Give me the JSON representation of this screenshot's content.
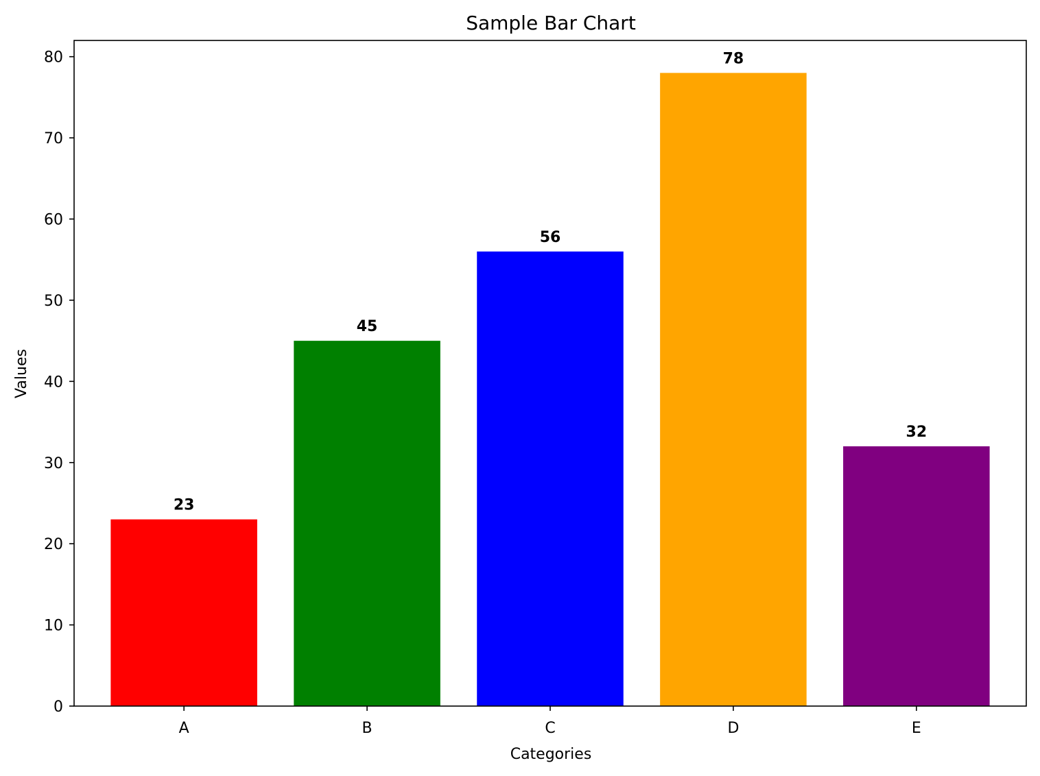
{
  "chart_data": {
    "type": "bar",
    "title": "Sample Bar Chart",
    "xlabel": "Categories",
    "ylabel": "Values",
    "categories": [
      "A",
      "B",
      "C",
      "D",
      "E"
    ],
    "values": [
      23,
      45,
      56,
      78,
      32
    ],
    "data_labels": [
      "23",
      "45",
      "56",
      "78",
      "32"
    ],
    "colors": [
      "#ff0000",
      "#008000",
      "#0000ff",
      "#ffa500",
      "#800080"
    ],
    "ylim": [
      0,
      82
    ],
    "yticks": [
      0,
      10,
      20,
      30,
      40,
      50,
      60,
      70,
      80
    ],
    "grid": false,
    "legend": "none"
  }
}
